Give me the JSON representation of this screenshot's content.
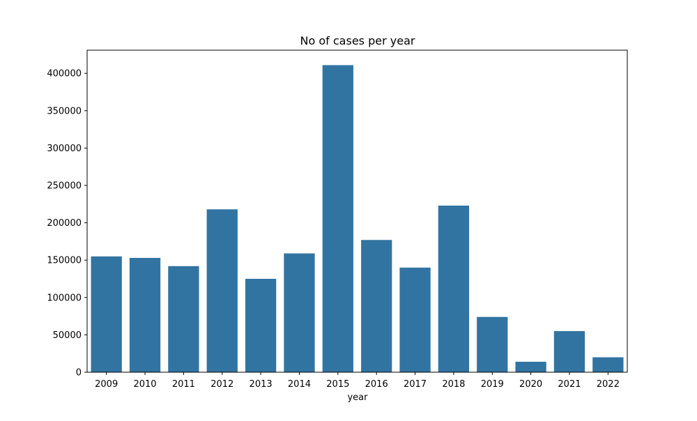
{
  "chart_data": {
    "type": "bar",
    "title": "No of cases per year",
    "xlabel": "year",
    "ylabel": "",
    "categories": [
      "2009",
      "2010",
      "2011",
      "2012",
      "2013",
      "2014",
      "2015",
      "2016",
      "2017",
      "2018",
      "2019",
      "2020",
      "2021",
      "2022"
    ],
    "values": [
      155000,
      153000,
      142000,
      218000,
      125000,
      159000,
      411000,
      177000,
      140000,
      223000,
      74000,
      14000,
      55000,
      20000
    ],
    "ylim": [
      0,
      431000
    ],
    "yticks": [
      0,
      50000,
      100000,
      150000,
      200000,
      250000,
      300000,
      350000,
      400000
    ],
    "ytick_labels": [
      "0",
      "50000",
      "100000",
      "150000",
      "200000",
      "250000",
      "300000",
      "350000",
      "400000"
    ],
    "bar_color": "#3274a1",
    "grid": false,
    "legend": "none"
  }
}
